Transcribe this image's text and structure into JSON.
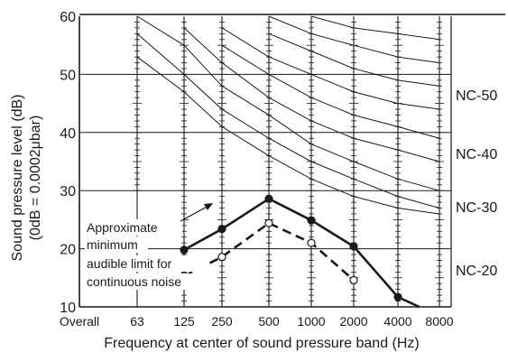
{
  "chart_data": {
    "type": "line",
    "xlabel": "Frequency at center of sound pressure band (Hz)",
    "ylabel_line1": "Sound pressure level (dB)",
    "ylabel_line2": "(0dB = 0.0002μbar)",
    "ylim": [
      10,
      60
    ],
    "yticks": [
      "10",
      "20",
      "30",
      "40",
      "50",
      "60"
    ],
    "x_categories": [
      "Overall",
      "63",
      "125",
      "250",
      "500",
      "1000",
      "2000",
      "4000",
      "8000"
    ],
    "grid": "horizontal lines every 10 dB; vertical hatched rulers at each octave band",
    "nc_curves": [
      {
        "label": "",
        "values": [
          null,
          53,
          47,
          41,
          36,
          32,
          29,
          27,
          26
        ]
      },
      {
        "label": "",
        "values": [
          null,
          57,
          50,
          44,
          39,
          35,
          32,
          29,
          27
        ]
      },
      {
        "label": "NC-20",
        "values": [
          null,
          60,
          55,
          48,
          43,
          38,
          35,
          32,
          30
        ]
      },
      {
        "label": "",
        "values": [
          null,
          null,
          58,
          52,
          46,
          42,
          39,
          37,
          35
        ]
      },
      {
        "label": "NC-30",
        "values": [
          null,
          null,
          null,
          55,
          50,
          46,
          43,
          41,
          39
        ]
      },
      {
        "label": "",
        "values": [
          null,
          null,
          null,
          58,
          53,
          50,
          47,
          45,
          44
        ]
      },
      {
        "label": "NC-40",
        "values": [
          null,
          null,
          null,
          null,
          57,
          54,
          51,
          49,
          48
        ]
      },
      {
        "label": "",
        "values": [
          null,
          null,
          null,
          null,
          60,
          57,
          55,
          53,
          52
        ]
      },
      {
        "label": "NC-50",
        "values": [
          null,
          null,
          null,
          null,
          null,
          60,
          58,
          57,
          56
        ]
      }
    ],
    "series": [
      {
        "name": "",
        "style": "solid",
        "marker": "filled circle",
        "values": [
          null,
          null,
          19.8,
          23.4,
          28.6,
          24.9,
          20.4,
          11.7,
          8.4
        ]
      },
      {
        "name": "",
        "style": "dashed",
        "marker": "open circle",
        "values": [
          null,
          null,
          15.3,
          18.6,
          24.4,
          21.0,
          14.6,
          null,
          null
        ]
      }
    ],
    "annotation": {
      "lines": [
        "Approximate",
        "minimum",
        "audible limit for",
        "continuous noise"
      ]
    },
    "colors": {
      "ink": "#1a1a1a",
      "background": "#ffffff"
    }
  }
}
